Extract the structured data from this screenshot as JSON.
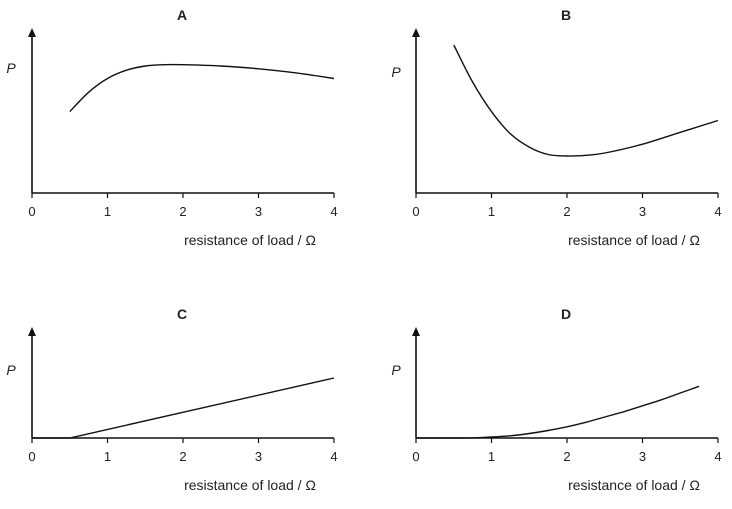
{
  "chart_data": [
    {
      "type": "line",
      "title": "A",
      "xlabel": "resistance of load / Ω",
      "ylabel": "P",
      "xlim": [
        0,
        4
      ],
      "ylim": [
        0,
        1
      ],
      "x_ticks": [
        "0",
        "1",
        "2",
        "3",
        "4"
      ],
      "series": [
        {
          "x": [
            0.5,
            0.75,
            1.0,
            1.25,
            1.5,
            1.75,
            2.0,
            2.5,
            3.0,
            3.5,
            4.0
          ],
          "y": [
            0.59,
            0.73,
            0.83,
            0.89,
            0.92,
            0.93,
            0.93,
            0.92,
            0.9,
            0.87,
            0.83
          ]
        }
      ]
    },
    {
      "type": "line",
      "title": "B",
      "xlabel": "resistance of load / Ω",
      "ylabel": "P",
      "xlim": [
        0,
        4
      ],
      "ylim": [
        0,
        1
      ],
      "x_ticks": [
        "0",
        "1",
        "2",
        "3",
        "4"
      ],
      "series": [
        {
          "x": [
            0.5,
            0.75,
            1.0,
            1.25,
            1.5,
            1.75,
            2.0,
            2.25,
            2.5,
            3.0,
            3.5,
            4.0
          ],
          "y": [
            1.0,
            0.75,
            0.55,
            0.4,
            0.31,
            0.26,
            0.25,
            0.255,
            0.27,
            0.33,
            0.41,
            0.49
          ]
        }
      ]
    },
    {
      "type": "line",
      "title": "C",
      "xlabel": "resistance of load / Ω",
      "ylabel": "P",
      "xlim": [
        0,
        4
      ],
      "ylim": [
        0,
        1
      ],
      "x_ticks": [
        "0",
        "1",
        "2",
        "3",
        "4"
      ],
      "series": [
        {
          "x": [
            0,
            0.5,
            4.0
          ],
          "y": [
            0,
            0,
            0.8
          ]
        }
      ]
    },
    {
      "type": "line",
      "title": "D",
      "xlabel": "resistance of load / Ω",
      "ylabel": "P",
      "xlim": [
        0,
        4
      ],
      "ylim": [
        0,
        1
      ],
      "x_ticks": [
        "0",
        "1",
        "2",
        "3",
        "4"
      ],
      "series": [
        {
          "x": [
            0,
            0.5,
            0.8,
            1.0,
            1.25,
            1.5,
            1.75,
            2.0,
            2.25,
            2.5,
            2.75,
            3.0,
            3.25,
            3.5,
            3.75
          ],
          "y": [
            0,
            0,
            0.003,
            0.013,
            0.03,
            0.06,
            0.1,
            0.15,
            0.21,
            0.28,
            0.35,
            0.43,
            0.51,
            0.6,
            0.69
          ]
        }
      ]
    }
  ]
}
